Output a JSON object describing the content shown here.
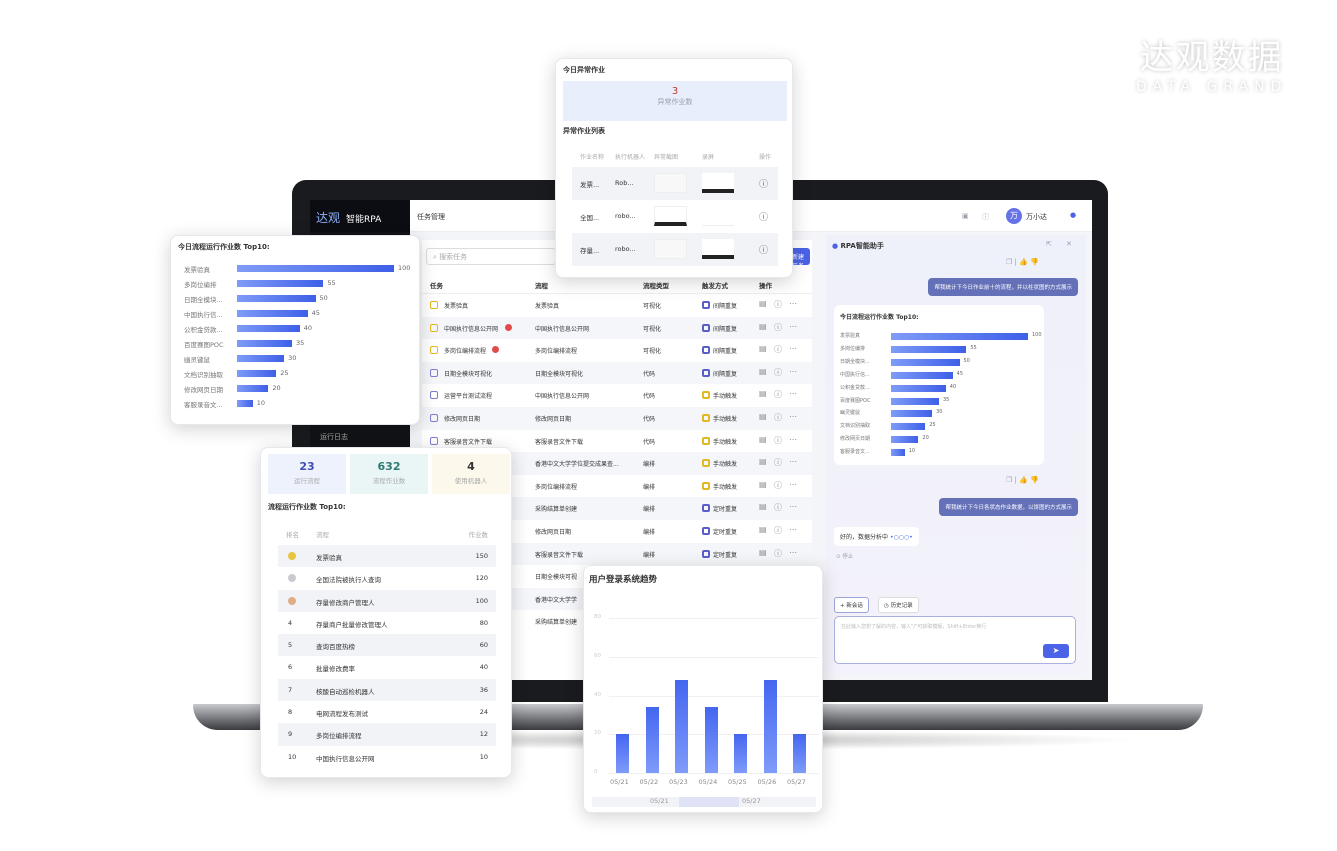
{
  "brand": {
    "name_cn": "达观数据",
    "name_en": "DATA GRAND"
  },
  "app": {
    "logo_text": "达观",
    "product": "智能RPA",
    "page_title": "任务管理",
    "user": "万小达",
    "avatar": "万",
    "sidebar_bottom": "运行日志"
  },
  "task_table": {
    "search_placeholder": "搜索任务",
    "action_button": "新建任务",
    "headers": [
      "任务",
      "流程",
      "流程类型",
      "触发方式",
      "操作"
    ],
    "rows": [
      {
        "task": "发票验真",
        "flow": "发票验真",
        "type": "可视化",
        "trigger": "间隔重复",
        "tc": "yellow",
        "badge": false
      },
      {
        "task": "中国执行信息公开网",
        "flow": "中国执行信息公开网",
        "type": "可视化",
        "trigger": "间隔重复",
        "tc": "yellow",
        "badge": true
      },
      {
        "task": "多岗位编排流程",
        "flow": "多岗位编排流程",
        "type": "可视化",
        "trigger": "间隔重复",
        "tc": "yellow",
        "badge": true
      },
      {
        "task": "日期全模块可视化",
        "flow": "日期全模块可视化",
        "type": "代码",
        "trigger": "间隔重复",
        "tc": "purple",
        "badge": false
      },
      {
        "task": "运营平台测试流程",
        "flow": "中国执行信息公开网",
        "type": "代码",
        "trigger": "手动触发",
        "tc": "purple",
        "badge": false
      },
      {
        "task": "修改网页日期",
        "flow": "修改网页日期",
        "type": "代码",
        "trigger": "手动触发",
        "tc": "purple",
        "badge": false
      },
      {
        "task": "客服录音文件下载",
        "flow": "客服录音文件下载",
        "type": "代码",
        "trigger": "手动触发",
        "tc": "purple",
        "badge": false
      },
      {
        "task": "",
        "flow": "香港中文大学学位提交成果查...",
        "type": "编排",
        "trigger": "手动触发",
        "tc": "purple",
        "badge": false
      },
      {
        "task": "",
        "flow": "多岗位编排流程",
        "type": "编排",
        "trigger": "手动触发",
        "tc": "purple",
        "badge": false
      },
      {
        "task": "",
        "flow": "采购结算单创建",
        "type": "编排",
        "trigger": "定时重复",
        "tc": "purple",
        "badge": false
      },
      {
        "task": "",
        "flow": "修改网页日期",
        "type": "编排",
        "trigger": "定时重复",
        "tc": "purple",
        "badge": false
      },
      {
        "task": "",
        "flow": "客服录音文件下载",
        "type": "编排",
        "trigger": "定时重复",
        "tc": "purple",
        "badge": false
      },
      {
        "task": "",
        "flow": "日期全模块可视",
        "type": "",
        "trigger": "",
        "tc": "",
        "badge": false
      },
      {
        "task": "",
        "flow": "香港中文大学学",
        "type": "",
        "trigger": "",
        "tc": "",
        "badge": false
      },
      {
        "task": "",
        "flow": "采购结算单创建",
        "type": "",
        "trigger": "",
        "tc": "",
        "badge": false
      }
    ]
  },
  "anomaly": {
    "title": "今日异常作业",
    "count": "3",
    "count_label": "异常作业数",
    "list_title": "异常作业列表",
    "headers": [
      "作业名称",
      "执行机器人",
      "异常截图",
      "录屏",
      "操作"
    ],
    "rows": [
      {
        "name": "发票...",
        "robot": "Rob..."
      },
      {
        "name": "全国...",
        "robot": "robo..."
      },
      {
        "name": "存量...",
        "robot": "robo..."
      }
    ]
  },
  "chart_data": [
    {
      "type": "bar",
      "orientation": "horizontal",
      "title": "今日流程运行作业数 Top10:",
      "categories": [
        "发票验真",
        "多岗位编排",
        "日期全模块...",
        "中国执行信...",
        "公积金贷款...",
        "百度赛图POC",
        "幽灵键鼠",
        "文档识别抽取",
        "修改网页日期",
        "客服录音文..."
      ],
      "values": [
        100,
        55,
        50,
        45,
        40,
        35,
        30,
        25,
        20,
        10
      ]
    },
    {
      "type": "bar",
      "title": "用户登录系统趋势",
      "categories": [
        "05/21",
        "05/22",
        "05/23",
        "05/24",
        "05/25",
        "05/26",
        "05/27"
      ],
      "values": [
        20,
        34,
        48,
        34,
        20,
        48,
        20
      ],
      "ylim": [
        0,
        80
      ],
      "yticks": [
        0,
        20,
        40,
        60,
        80
      ],
      "grid": true,
      "slider_labels": [
        "05/21",
        "05/27"
      ]
    }
  ],
  "stats": {
    "items": [
      {
        "value": "23",
        "label": "运行流程",
        "color": "#3d4db7",
        "bg": "#eef2fc"
      },
      {
        "value": "632",
        "label": "流程作业数",
        "color": "#2f7a74",
        "bg": "#eaf6f5"
      },
      {
        "value": "4",
        "label": "使用机器人",
        "color": "#333333",
        "bg": "#fcf8ec"
      }
    ],
    "table_title": "流程运行作业数 Top10:",
    "headers": [
      "排名",
      "流程",
      "作业数"
    ],
    "rows": [
      {
        "rank": "1",
        "name": "发票验真",
        "count": "150",
        "medal": "#e8c440"
      },
      {
        "rank": "2",
        "name": "全国法院被执行人查询",
        "count": "120",
        "medal": "#c9cbd0"
      },
      {
        "rank": "3",
        "name": "存量修改商户管理人",
        "count": "100",
        "medal": "#e0ae85"
      },
      {
        "rank": "4",
        "name": "存量商户批量修改管理人",
        "count": "80"
      },
      {
        "rank": "5",
        "name": "查询百度热榜",
        "count": "60"
      },
      {
        "rank": "6",
        "name": "批量修改费率",
        "count": "40"
      },
      {
        "rank": "7",
        "name": "核酸自动巡检机器人",
        "count": "36"
      },
      {
        "rank": "8",
        "name": "电网流程发布测试",
        "count": "24"
      },
      {
        "rank": "9",
        "name": "多岗位编排流程",
        "count": "12"
      },
      {
        "rank": "10",
        "name": "中国执行信息公开网",
        "count": "10"
      }
    ]
  },
  "assistant": {
    "title": "RPA智能助手",
    "msg1": "帮我统计下今日作业前十的流程，并以柱状图的方式展示",
    "msg2": "帮我统计下今日各状态作业数据，以饼图的方式展示",
    "reply": "好的，数据分析中",
    "stop": "停止",
    "new_chat": "+ 新会话",
    "history": "历史记录",
    "placeholder": "在此输入您想了解的内容，输入\"/\"可获取模版，Shift+Enter换行"
  },
  "colors": {
    "accent": "#4a63e7",
    "dark": "#111111",
    "bubble": "#6470b8"
  }
}
